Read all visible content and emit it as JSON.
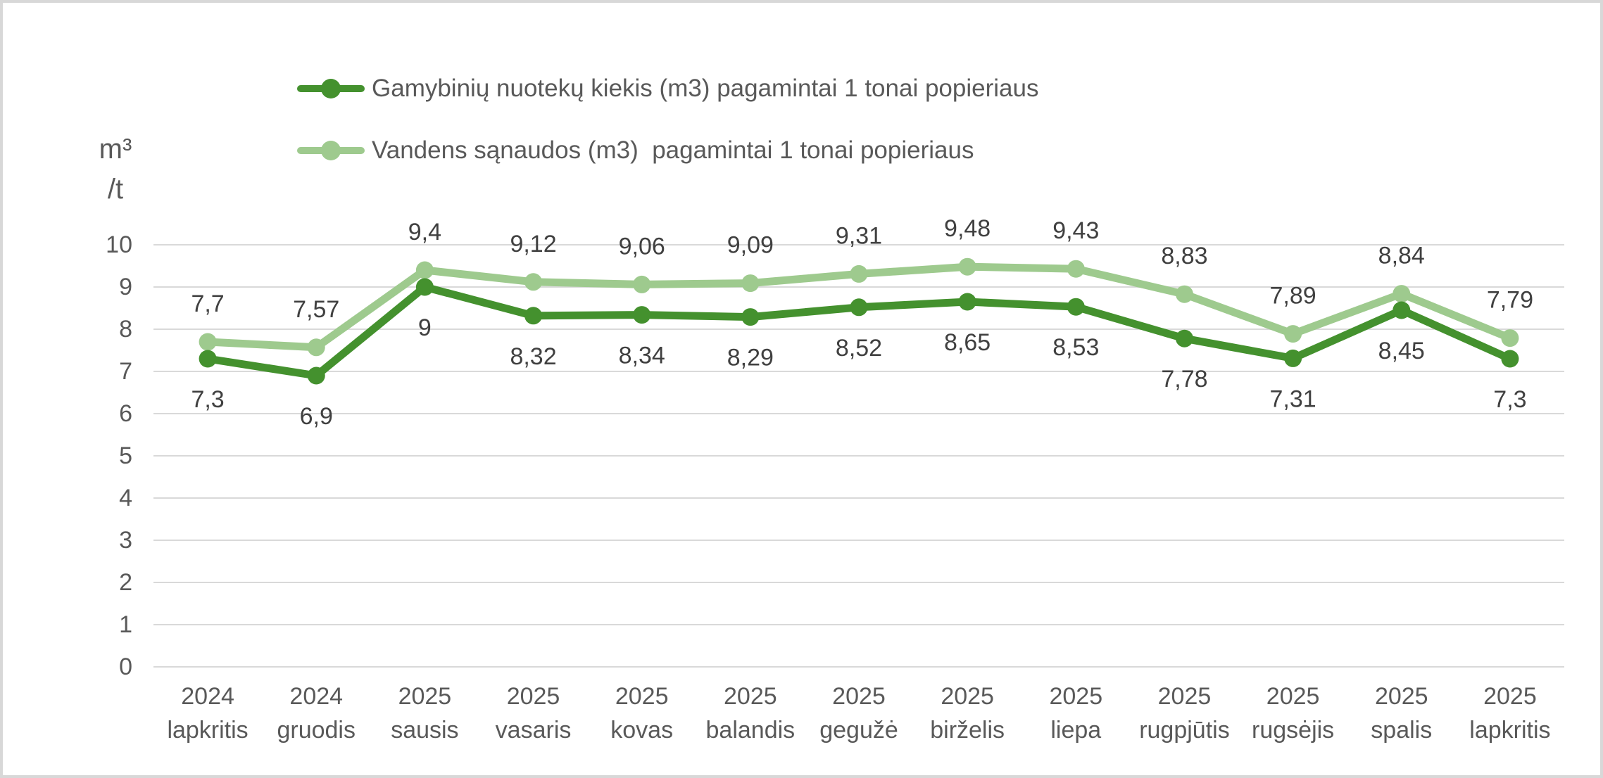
{
  "window": {
    "background": "#ffffff",
    "border_color": "#d8d8d8"
  },
  "y_axis": {
    "unit_line_1": "m³",
    "unit_line_2": "/t",
    "tick_labels": [
      "0",
      "1",
      "2",
      "3",
      "4",
      "5",
      "6",
      "7",
      "8",
      "9",
      "10"
    ]
  },
  "chart_data": {
    "type": "line",
    "title": "",
    "ylabel": "m³/t",
    "xlabel": "",
    "ylim": [
      0,
      10
    ],
    "yticks": [
      0,
      1,
      2,
      3,
      4,
      5,
      6,
      7,
      8,
      9,
      10
    ],
    "grid": "horizontal",
    "legend_position": "top-left",
    "gridline_color": "#d9d9d9",
    "axis_text_color": "#595959",
    "data_label_color": "#404040",
    "x_categories": [
      {
        "year": "2024",
        "month": "lapkritis"
      },
      {
        "year": "2024",
        "month": "gruodis"
      },
      {
        "year": "2025",
        "month": "sausis"
      },
      {
        "year": "2025",
        "month": "vasaris"
      },
      {
        "year": "2025",
        "month": "kovas"
      },
      {
        "year": "2025",
        "month": "balandis"
      },
      {
        "year": "2025",
        "month": "gegužė"
      },
      {
        "year": "2025",
        "month": "birželis"
      },
      {
        "year": "2025",
        "month": "liepa"
      },
      {
        "year": "2025",
        "month": "rugpjūtis"
      },
      {
        "year": "2025",
        "month": "rugsėjis"
      },
      {
        "year": "2025",
        "month": "spalis"
      },
      {
        "year": "2025",
        "month": "lapkritis"
      }
    ],
    "series": [
      {
        "name": "Gamybinių nuotekų kiekis (m3) pagamintai 1 tonai popieriaus",
        "color": "#44912e",
        "marker": "circle",
        "label_position": "below",
        "values": [
          7.3,
          6.9,
          9,
          8.32,
          8.34,
          8.29,
          8.52,
          8.65,
          8.53,
          7.78,
          7.31,
          8.45,
          7.3
        ],
        "value_labels": [
          "7,3",
          "6,9",
          "9",
          "8,32",
          "8,34",
          "8,29",
          "8,52",
          "8,65",
          "8,53",
          "7,78",
          "7,31",
          "8,45",
          "7,3"
        ]
      },
      {
        "name": "Vandens sąnaudos (m3)  pagamintai 1 tonai popieriaus",
        "color": "#9eca8e",
        "marker": "circle",
        "label_position": "above",
        "values": [
          7.7,
          7.57,
          9.4,
          9.12,
          9.06,
          9.09,
          9.31,
          9.48,
          9.43,
          8.83,
          7.89,
          8.84,
          7.79
        ],
        "value_labels": [
          "7,7",
          "7,57",
          "9,4",
          "9,12",
          "9,06",
          "9,09",
          "9,31",
          "9,48",
          "9,43",
          "8,83",
          "7,89",
          "8,84",
          "7,79"
        ]
      }
    ]
  }
}
